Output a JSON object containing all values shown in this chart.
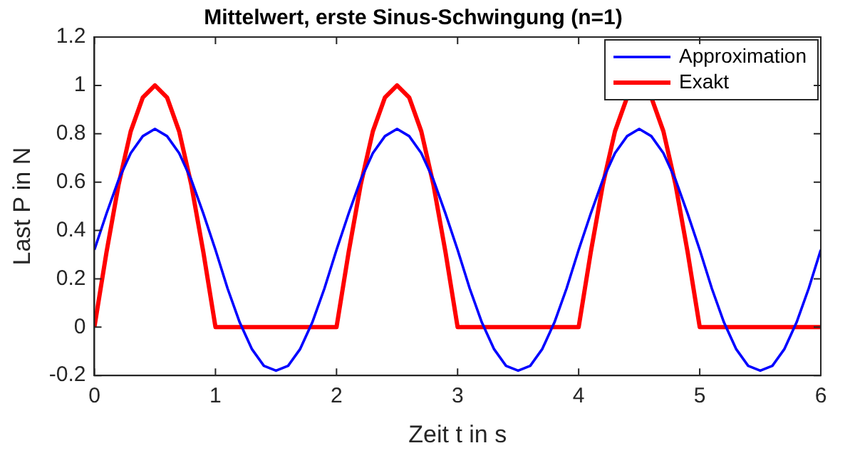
{
  "chart_data": {
    "type": "line",
    "title": "Mittelwert, erste Sinus-Schwingung (n=1)",
    "xlabel": "Zeit t in s",
    "ylabel": "Last P in N",
    "x": [
      0,
      0.1,
      0.2,
      0.3,
      0.4,
      0.5,
      0.6,
      0.7,
      0.8,
      0.9,
      1,
      1.1,
      1.2,
      1.3,
      1.4,
      1.5,
      1.6,
      1.7,
      1.8,
      1.9,
      2,
      2.1,
      2.2,
      2.3,
      2.4,
      2.5,
      2.6,
      2.7,
      2.8,
      2.9,
      3,
      3.1,
      3.2,
      3.3,
      3.4,
      3.5,
      3.6,
      3.7,
      3.8,
      3.9,
      4,
      4.1,
      4.2,
      4.3,
      4.4,
      4.5,
      4.6,
      4.7,
      4.8,
      4.9,
      5,
      5.1,
      5.2,
      5.3,
      5.4,
      5.5,
      5.6,
      5.7,
      5.8,
      5.9,
      6
    ],
    "series": [
      {
        "name": "Approximation",
        "color": "#0000ff",
        "values": [
          0.32,
          0.47,
          0.61,
          0.72,
          0.79,
          0.82,
          0.79,
          0.72,
          0.61,
          0.47,
          0.32,
          0.16,
          0.02,
          -0.09,
          -0.16,
          -0.18,
          -0.16,
          -0.09,
          0.02,
          0.16,
          0.32,
          0.47,
          0.61,
          0.72,
          0.79,
          0.82,
          0.79,
          0.72,
          0.61,
          0.47,
          0.32,
          0.16,
          0.02,
          -0.09,
          -0.16,
          -0.18,
          -0.16,
          -0.09,
          0.02,
          0.16,
          0.32,
          0.47,
          0.61,
          0.72,
          0.79,
          0.82,
          0.79,
          0.72,
          0.61,
          0.47,
          0.32,
          0.16,
          0.02,
          -0.09,
          -0.16,
          -0.18,
          -0.16,
          -0.09,
          0.02,
          0.16,
          0.32
        ]
      },
      {
        "name": "Exakt",
        "color": "#ff0000",
        "values": [
          0,
          0.31,
          0.59,
          0.81,
          0.95,
          1,
          0.95,
          0.81,
          0.59,
          0.31,
          0,
          0,
          0,
          0,
          0,
          0,
          0,
          0,
          0,
          0,
          0,
          0.31,
          0.59,
          0.81,
          0.95,
          1,
          0.95,
          0.81,
          0.59,
          0.31,
          0,
          0,
          0,
          0,
          0,
          0,
          0,
          0,
          0,
          0,
          0,
          0.31,
          0.59,
          0.81,
          0.95,
          1,
          0.95,
          0.81,
          0.59,
          0.31,
          0,
          0,
          0,
          0,
          0,
          0,
          0,
          0,
          0,
          0,
          0
        ]
      }
    ],
    "xlim": [
      0,
      6
    ],
    "xticks": [
      0,
      1,
      2,
      3,
      4,
      5,
      6
    ],
    "ylim": [
      -0.2,
      1.2
    ],
    "yticks": [
      -0.2,
      0,
      0.2,
      0.4,
      0.6,
      0.8,
      1,
      1.2
    ],
    "grid": false,
    "legend": "top right",
    "marker": "none",
    "line_style": "solid"
  }
}
